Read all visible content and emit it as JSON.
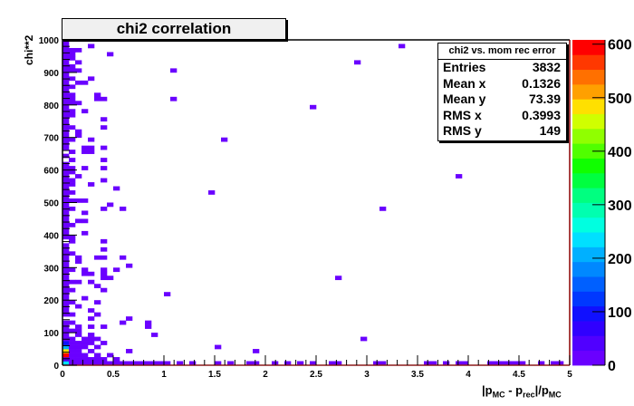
{
  "chart_data": {
    "type": "heatmap",
    "title": "chi2 correlation",
    "xlabel_parts": [
      "|p",
      "MC",
      " - p",
      "rec",
      "|/p",
      "MC"
    ],
    "ylabel": "chi**2",
    "xlim": [
      0,
      5
    ],
    "ylim": [
      0,
      1000
    ],
    "zlim": [
      0,
      608
    ],
    "xbins": 80,
    "ybins": 80,
    "x_ticks": [
      "0",
      "0.5",
      "1",
      "1.5",
      "2",
      "2.5",
      "3",
      "3.5",
      "4",
      "4.5",
      "5"
    ],
    "y_ticks": [
      "0",
      "100",
      "200",
      "300",
      "400",
      "500",
      "600",
      "700",
      "800",
      "900",
      "1000"
    ],
    "z_ticks": [
      "0",
      "100",
      "200",
      "300",
      "400",
      "500",
      "600"
    ],
    "palette": [
      "#6a00ff",
      "#5000ff",
      "#3000ff",
      "#1010ff",
      "#0038ff",
      "#0060ff",
      "#0088ff",
      "#00b0ff",
      "#00e0ff",
      "#00ffe0",
      "#00ffb0",
      "#00ff80",
      "#00ff40",
      "#10ff00",
      "#50ff00",
      "#90ff00",
      "#d0ff00",
      "#ffe000",
      "#ffa000",
      "#ff7000",
      "#ff3800",
      "#ff0000"
    ],
    "bins": [
      [
        0,
        0,
        230
      ],
      [
        0,
        1,
        40
      ],
      [
        0,
        2,
        600
      ],
      [
        0,
        3,
        470
      ],
      [
        0,
        4,
        210
      ],
      [
        0,
        5,
        110
      ],
      [
        0,
        6,
        20
      ],
      [
        0,
        7,
        3
      ],
      [
        0,
        8,
        3
      ],
      [
        0,
        9,
        2
      ],
      [
        0,
        10,
        2
      ],
      [
        0,
        12,
        2
      ],
      [
        0,
        13,
        2
      ],
      [
        0,
        14,
        2
      ],
      [
        0,
        15,
        2
      ],
      [
        0,
        16,
        2
      ],
      [
        0,
        17,
        2
      ],
      [
        0,
        18,
        2
      ],
      [
        0,
        19,
        2
      ],
      [
        0,
        20,
        2
      ],
      [
        0,
        21,
        2
      ],
      [
        0,
        22,
        2
      ],
      [
        0,
        23,
        2
      ],
      [
        0,
        24,
        2
      ],
      [
        0,
        25,
        2
      ],
      [
        0,
        26,
        2
      ],
      [
        0,
        27,
        2
      ],
      [
        0,
        28,
        2
      ],
      [
        0,
        29,
        2
      ],
      [
        0,
        31,
        2
      ],
      [
        0,
        32,
        2
      ],
      [
        0,
        33,
        2
      ],
      [
        0,
        34,
        2
      ],
      [
        0,
        35,
        2
      ],
      [
        0,
        36,
        2
      ],
      [
        0,
        37,
        2
      ],
      [
        0,
        38,
        2
      ],
      [
        0,
        39,
        2
      ],
      [
        0,
        40,
        2
      ],
      [
        0,
        41,
        2
      ],
      [
        0,
        42,
        2
      ],
      [
        0,
        43,
        2
      ],
      [
        0,
        44,
        2
      ],
      [
        0,
        45,
        2
      ],
      [
        0,
        46,
        2
      ],
      [
        0,
        47,
        2
      ],
      [
        0,
        48,
        2
      ],
      [
        0,
        49,
        2
      ],
      [
        0,
        51,
        2
      ],
      [
        0,
        53,
        2
      ],
      [
        0,
        54,
        2
      ],
      [
        0,
        55,
        2
      ],
      [
        0,
        56,
        2
      ],
      [
        0,
        57,
        2
      ],
      [
        0,
        58,
        2
      ],
      [
        0,
        59,
        2
      ],
      [
        0,
        60,
        2
      ],
      [
        0,
        61,
        2
      ],
      [
        0,
        62,
        2
      ],
      [
        0,
        63,
        2
      ],
      [
        0,
        64,
        2
      ],
      [
        0,
        65,
        2
      ],
      [
        0,
        66,
        2
      ],
      [
        0,
        67,
        2
      ],
      [
        0,
        68,
        2
      ],
      [
        0,
        69,
        2
      ],
      [
        0,
        70,
        2
      ],
      [
        0,
        71,
        2
      ],
      [
        0,
        72,
        2
      ],
      [
        0,
        73,
        2
      ],
      [
        0,
        74,
        2
      ],
      [
        0,
        75,
        2
      ],
      [
        0,
        76,
        2
      ],
      [
        0,
        77,
        2
      ],
      [
        0,
        78,
        2
      ],
      [
        0,
        79,
        2
      ],
      [
        1,
        0,
        8
      ],
      [
        1,
        1,
        6
      ],
      [
        1,
        2,
        5
      ],
      [
        1,
        3,
        4
      ],
      [
        1,
        4,
        3
      ],
      [
        1,
        5,
        2
      ],
      [
        1,
        6,
        2
      ],
      [
        1,
        8,
        1
      ],
      [
        1,
        10,
        1
      ],
      [
        1,
        12,
        1
      ],
      [
        1,
        15,
        1
      ],
      [
        1,
        18,
        1
      ],
      [
        1,
        20,
        1
      ],
      [
        1,
        23,
        1
      ],
      [
        1,
        27,
        1
      ],
      [
        1,
        30,
        1
      ],
      [
        1,
        31,
        1
      ],
      [
        1,
        34,
        1
      ],
      [
        1,
        38,
        1
      ],
      [
        1,
        40,
        1
      ],
      [
        1,
        42,
        1
      ],
      [
        1,
        44,
        1
      ],
      [
        1,
        45,
        1
      ],
      [
        1,
        47,
        1
      ],
      [
        1,
        48,
        1
      ],
      [
        1,
        50,
        1
      ],
      [
        1,
        52,
        1
      ],
      [
        1,
        55,
        1
      ],
      [
        1,
        58,
        1
      ],
      [
        1,
        61,
        1
      ],
      [
        1,
        62,
        1
      ],
      [
        1,
        64,
        1
      ],
      [
        1,
        65,
        1
      ],
      [
        1,
        66,
        1
      ],
      [
        1,
        68,
        1
      ],
      [
        1,
        70,
        1
      ],
      [
        1,
        72,
        1
      ],
      [
        1,
        73,
        1
      ],
      [
        1,
        75,
        1
      ],
      [
        1,
        76,
        1
      ],
      [
        1,
        77,
        1
      ],
      [
        2,
        0,
        4
      ],
      [
        2,
        1,
        3
      ],
      [
        2,
        2,
        2
      ],
      [
        2,
        3,
        2
      ],
      [
        2,
        4,
        2
      ],
      [
        2,
        5,
        1
      ],
      [
        2,
        7,
        1
      ],
      [
        2,
        8,
        1
      ],
      [
        2,
        9,
        1
      ],
      [
        2,
        14,
        1
      ],
      [
        2,
        20,
        1
      ],
      [
        2,
        25,
        1
      ],
      [
        2,
        26,
        1
      ],
      [
        2,
        35,
        1
      ],
      [
        2,
        40,
        1
      ],
      [
        2,
        46,
        1
      ],
      [
        2,
        56,
        1
      ],
      [
        2,
        57,
        1
      ],
      [
        2,
        64,
        1
      ],
      [
        2,
        69,
        1
      ],
      [
        2,
        72,
        1
      ],
      [
        2,
        74,
        1
      ],
      [
        2,
        77,
        1
      ],
      [
        3,
        0,
        3
      ],
      [
        3,
        1,
        2
      ],
      [
        3,
        2,
        2
      ],
      [
        3,
        4,
        1
      ],
      [
        3,
        5,
        1
      ],
      [
        3,
        6,
        1
      ],
      [
        3,
        16,
        1
      ],
      [
        3,
        22,
        1
      ],
      [
        3,
        23,
        1
      ],
      [
        3,
        32,
        1
      ],
      [
        3,
        35,
        1
      ],
      [
        3,
        37,
        1
      ],
      [
        3,
        40,
        1
      ],
      [
        3,
        48,
        1
      ],
      [
        3,
        52,
        1
      ],
      [
        3,
        53,
        1
      ],
      [
        3,
        62,
        1
      ],
      [
        3,
        69,
        1
      ],
      [
        4,
        0,
        3
      ],
      [
        4,
        1,
        2
      ],
      [
        4,
        3,
        1
      ],
      [
        4,
        5,
        1
      ],
      [
        4,
        6,
        1
      ],
      [
        4,
        7,
        1
      ],
      [
        4,
        9,
        1
      ],
      [
        4,
        11,
        1
      ],
      [
        4,
        13,
        1
      ],
      [
        4,
        20,
        1
      ],
      [
        4,
        22,
        1
      ],
      [
        4,
        44,
        1
      ],
      [
        4,
        52,
        1
      ],
      [
        4,
        53,
        1
      ],
      [
        4,
        55,
        1
      ],
      [
        4,
        70,
        1
      ],
      [
        4,
        78,
        1
      ],
      [
        5,
        0,
        2
      ],
      [
        5,
        1,
        1
      ],
      [
        5,
        2,
        1
      ],
      [
        5,
        4,
        1
      ],
      [
        5,
        6,
        1
      ],
      [
        5,
        12,
        1
      ],
      [
        5,
        15,
        1
      ],
      [
        5,
        19,
        1
      ],
      [
        5,
        26,
        1
      ],
      [
        5,
        65,
        1
      ],
      [
        5,
        66,
        1
      ],
      [
        6,
        0,
        2
      ],
      [
        6,
        1,
        1
      ],
      [
        6,
        5,
        1
      ],
      [
        6,
        9,
        1
      ],
      [
        6,
        18,
        1
      ],
      [
        6,
        21,
        1
      ],
      [
        6,
        22,
        1
      ],
      [
        6,
        23,
        1
      ],
      [
        6,
        26,
        1
      ],
      [
        6,
        28,
        1
      ],
      [
        6,
        30,
        1
      ],
      [
        6,
        38,
        1
      ],
      [
        6,
        45,
        1
      ],
      [
        6,
        48,
        1
      ],
      [
        6,
        50,
        1
      ],
      [
        6,
        53,
        1
      ],
      [
        6,
        58,
        1
      ],
      [
        6,
        60,
        1
      ],
      [
        6,
        65,
        1
      ],
      [
        7,
        0,
        2
      ],
      [
        7,
        2,
        1
      ],
      [
        7,
        21,
        1
      ],
      [
        7,
        39,
        1
      ],
      [
        7,
        76,
        1
      ],
      [
        8,
        0,
        2
      ],
      [
        8,
        1,
        1
      ],
      [
        8,
        23,
        1
      ],
      [
        8,
        43,
        1
      ],
      [
        9,
        0,
        2
      ],
      [
        9,
        10,
        1
      ],
      [
        9,
        26,
        1
      ],
      [
        9,
        38,
        1
      ],
      [
        10,
        0,
        2
      ],
      [
        10,
        3,
        1
      ],
      [
        10,
        11,
        1
      ],
      [
        10,
        24,
        1
      ],
      [
        11,
        0,
        2
      ],
      [
        12,
        0,
        2
      ],
      [
        13,
        0,
        1
      ],
      [
        13,
        9,
        1
      ],
      [
        13,
        10,
        1
      ],
      [
        14,
        0,
        1
      ],
      [
        14,
        7,
        1
      ],
      [
        15,
        0,
        1
      ],
      [
        16,
        0,
        1
      ],
      [
        16,
        17,
        1
      ],
      [
        17,
        72,
        1
      ],
      [
        17,
        65,
        1
      ],
      [
        18,
        0,
        1
      ],
      [
        20,
        0,
        1
      ],
      [
        23,
        42,
        1
      ],
      [
        24,
        0,
        1
      ],
      [
        24,
        4,
        1
      ],
      [
        25,
        55,
        1
      ],
      [
        26,
        0,
        1
      ],
      [
        29,
        0,
        1
      ],
      [
        30,
        0,
        1
      ],
      [
        30,
        3,
        1
      ],
      [
        33,
        0,
        1
      ],
      [
        35,
        0,
        1
      ],
      [
        37,
        0,
        1
      ],
      [
        39,
        0,
        1
      ],
      [
        39,
        63,
        1
      ],
      [
        42,
        0,
        1
      ],
      [
        43,
        0,
        1
      ],
      [
        43,
        21,
        1
      ],
      [
        46,
        74,
        1
      ],
      [
        47,
        6,
        1
      ],
      [
        49,
        0,
        1
      ],
      [
        50,
        0,
        1
      ],
      [
        50,
        38,
        1
      ],
      [
        53,
        78,
        1
      ],
      [
        57,
        0,
        1
      ],
      [
        58,
        0,
        1
      ],
      [
        60,
        0,
        1
      ],
      [
        62,
        0,
        1
      ],
      [
        62,
        46,
        1
      ],
      [
        63,
        0,
        1
      ],
      [
        67,
        0,
        1
      ],
      [
        68,
        0,
        1
      ],
      [
        69,
        0,
        1
      ],
      [
        70,
        0,
        1
      ],
      [
        71,
        0,
        1
      ],
      [
        72,
        0,
        1
      ],
      [
        75,
        0,
        1
      ],
      [
        77,
        0,
        1
      ],
      [
        78,
        0,
        1
      ]
    ]
  },
  "stats": {
    "header": "chi2 vs. mom rec error",
    "rows": [
      {
        "label": "Entries",
        "value": "3832"
      },
      {
        "label": "Mean x",
        "value": "0.1326"
      },
      {
        "label": "Mean y",
        "value": "73.39"
      },
      {
        "label": "RMS x",
        "value": "0.3993"
      },
      {
        "label": "RMS y",
        "value": "149"
      }
    ]
  }
}
